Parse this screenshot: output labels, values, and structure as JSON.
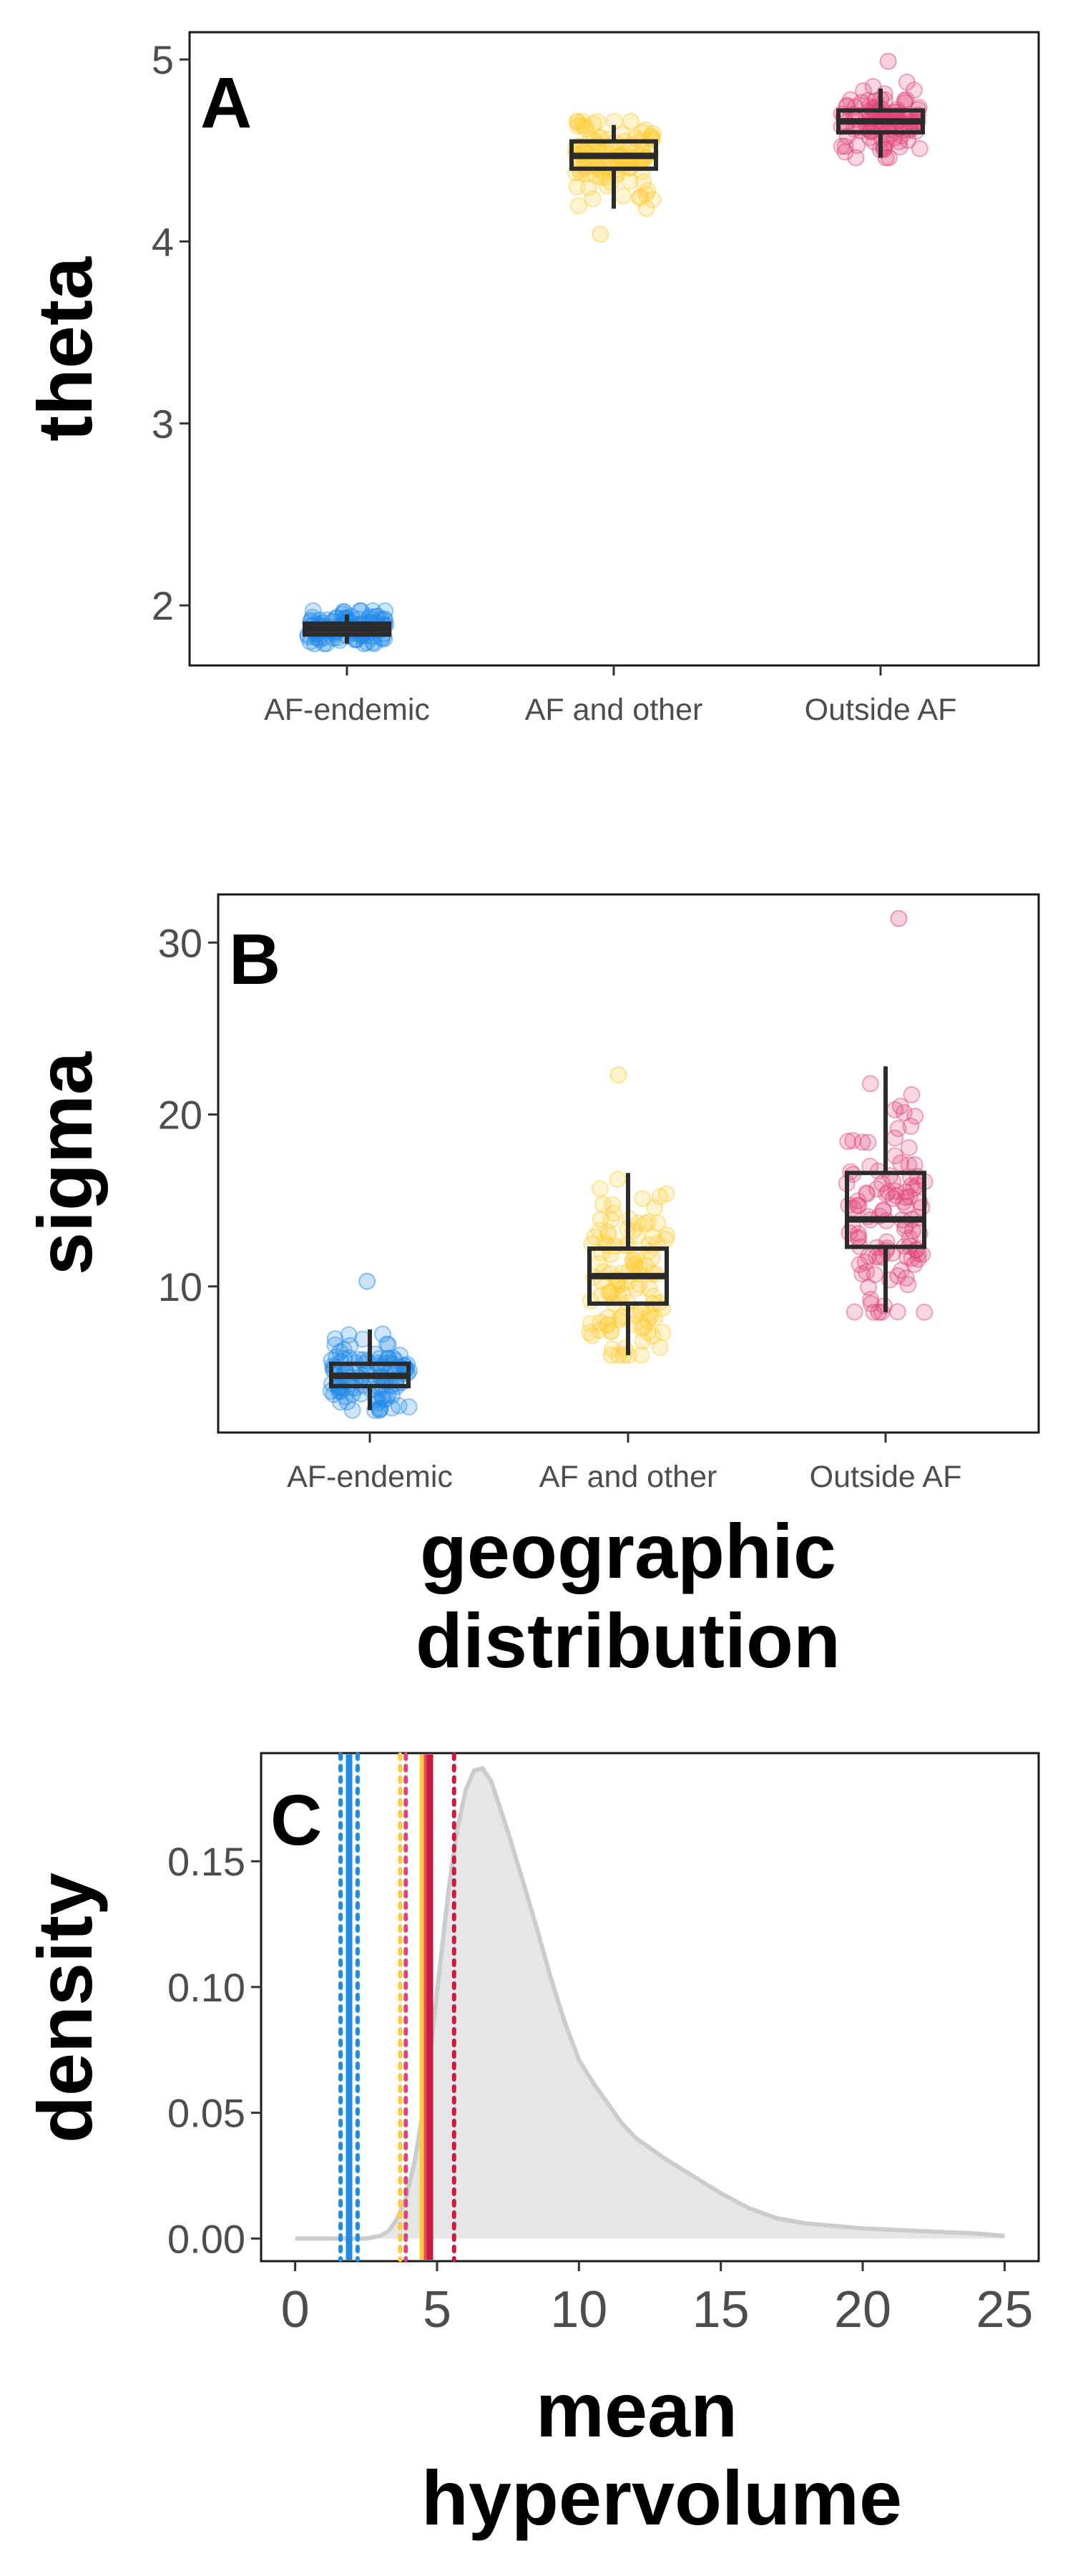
{
  "colors": {
    "af_endemic": "#1f8ae8",
    "af_and_other": "#ffcc33",
    "outside_af": "#e0457b",
    "mean_line": "#c81d3a",
    "density_fill": "#e6e6e6",
    "density_line": "#cccccc",
    "box": "#2b2b2b"
  },
  "chart_data": [
    {
      "panel": "A",
      "type": "box",
      "ylabel": "theta",
      "xlabel": "",
      "categories": [
        "AF-endemic",
        "AF and other",
        "Outside AF"
      ],
      "ylim": [
        1.67,
        5.15
      ],
      "yticks": [
        2,
        3,
        4,
        5
      ],
      "boxes": [
        {
          "category": "AF-endemic",
          "q1": 1.84,
          "median": 1.87,
          "q3": 1.9,
          "whisker_low": 1.79,
          "whisker_high": 1.95,
          "point_min": 1.79,
          "point_max": 1.97
        },
        {
          "category": "AF and other",
          "q1": 4.4,
          "median": 4.47,
          "q3": 4.55,
          "whisker_low": 4.18,
          "whisker_high": 4.64,
          "point_min": 4.04,
          "point_max": 4.66
        },
        {
          "category": "Outside AF",
          "q1": 4.6,
          "median": 4.66,
          "q3": 4.72,
          "whisker_low": 4.46,
          "whisker_high": 4.84,
          "point_min": 4.46,
          "point_max": 4.99
        }
      ]
    },
    {
      "panel": "B",
      "type": "box",
      "ylabel": "sigma",
      "xlabel": "geographic distribution",
      "categories": [
        "AF-endemic",
        "AF and other",
        "Outside AF"
      ],
      "ylim": [
        1.5,
        32.8
      ],
      "yticks": [
        10,
        20,
        30
      ],
      "boxes": [
        {
          "category": "AF-endemic",
          "q1": 4.2,
          "median": 4.8,
          "q3": 5.5,
          "whisker_low": 2.8,
          "whisker_high": 7.5,
          "point_min": 2.8,
          "point_max": 10.3
        },
        {
          "category": "AF and other",
          "q1": 9.0,
          "median": 10.6,
          "q3": 12.2,
          "whisker_low": 6.0,
          "whisker_high": 16.6,
          "point_min": 6.0,
          "point_max": 22.3
        },
        {
          "category": "Outside AF",
          "q1": 12.3,
          "median": 13.9,
          "q3": 16.6,
          "whisker_low": 8.5,
          "whisker_high": 22.8,
          "point_min": 8.5,
          "point_max": 31.4
        }
      ]
    },
    {
      "panel": "C",
      "type": "area",
      "ylabel": "density",
      "xlabel": "mean hypervolume",
      "xlim": [
        -1.2,
        26.2
      ],
      "ylim": [
        -0.009,
        0.193
      ],
      "xticks": [
        0,
        5,
        10,
        15,
        20,
        25
      ],
      "yticks": [
        0.0,
        0.05,
        0.1,
        0.15
      ],
      "ytick_labels": [
        "0.00",
        "0.05",
        "0.10",
        "0.15"
      ],
      "density": {
        "x": [
          0,
          2.5,
          3,
          3.3,
          3.6,
          3.9,
          4.2,
          4.5,
          4.8,
          5.1,
          5.4,
          5.7,
          6.0,
          6.3,
          6.6,
          6.9,
          7.2,
          7.6,
          8.0,
          8.5,
          9.0,
          9.5,
          10.0,
          10.5,
          11.0,
          11.5,
          12.0,
          13.0,
          14.0,
          15.0,
          16.0,
          17.0,
          18.0,
          19.0,
          20.0,
          22.0,
          24.0,
          25.0
        ],
        "y": [
          0,
          0,
          0.001,
          0.003,
          0.008,
          0.016,
          0.03,
          0.05,
          0.078,
          0.108,
          0.138,
          0.162,
          0.178,
          0.186,
          0.187,
          0.182,
          0.172,
          0.158,
          0.143,
          0.124,
          0.104,
          0.086,
          0.071,
          0.062,
          0.054,
          0.046,
          0.04,
          0.032,
          0.025,
          0.018,
          0.012,
          0.008,
          0.006,
          0.005,
          0.004,
          0.003,
          0.002,
          0.001
        ]
      },
      "vlines": [
        {
          "x": 1.6,
          "color": "#1f8ae8",
          "style": "dotted"
        },
        {
          "x": 1.9,
          "color": "#1f8ae8",
          "style": "solid"
        },
        {
          "x": 2.2,
          "color": "#1f8ae8",
          "style": "dotted"
        },
        {
          "x": 3.7,
          "color": "#ffcc33",
          "style": "dotted"
        },
        {
          "x": 4.5,
          "color": "#ffcc33",
          "style": "solid"
        },
        {
          "x": 3.9,
          "color": "#e0457b",
          "style": "dotted"
        },
        {
          "x": 4.65,
          "color": "#e0457b",
          "style": "solid"
        },
        {
          "x": 4.75,
          "color": "#c81d3a",
          "style": "solid"
        },
        {
          "x": 5.6,
          "color": "#c81d3a",
          "style": "dotted"
        }
      ]
    }
  ]
}
